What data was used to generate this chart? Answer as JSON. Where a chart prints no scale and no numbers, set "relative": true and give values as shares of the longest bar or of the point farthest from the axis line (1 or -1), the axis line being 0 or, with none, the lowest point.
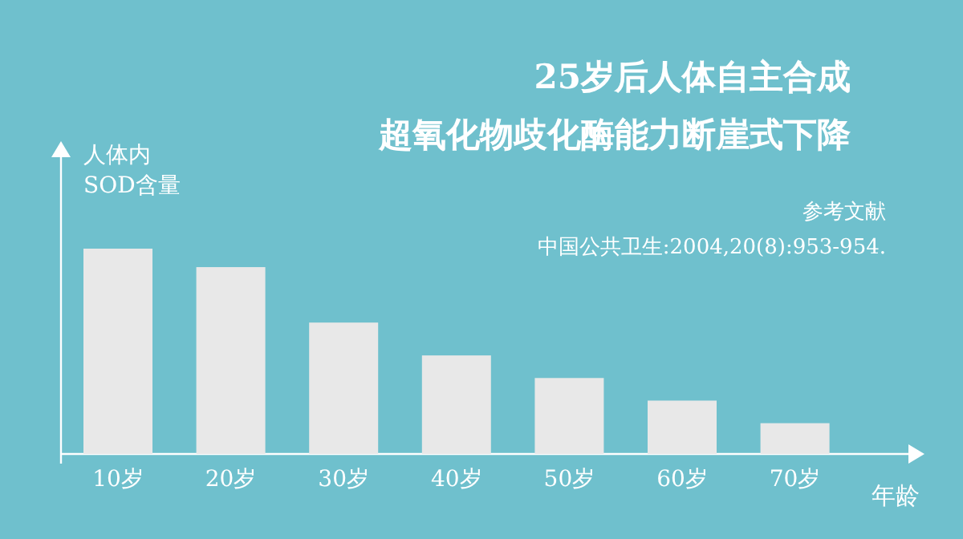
{
  "chart_data": {
    "type": "bar",
    "relative": true,
    "title": "25岁后人体自主合成",
    "subtitle": "超氧化物歧化酶能力断崖式下降",
    "xlabel": "年龄",
    "ylabel": "人体内SOD含量",
    "annotations": [
      "参考文献",
      "中国公共卫生:2004,20(8):953-954."
    ],
    "categories": [
      "10岁",
      "20岁",
      "30岁",
      "40岁",
      "50岁",
      "60岁",
      "70岁"
    ],
    "values": [
      1,
      0.91,
      0.64,
      0.48,
      0.37,
      0.26,
      0.15
    ],
    "color": "#e8e8e8"
  }
}
